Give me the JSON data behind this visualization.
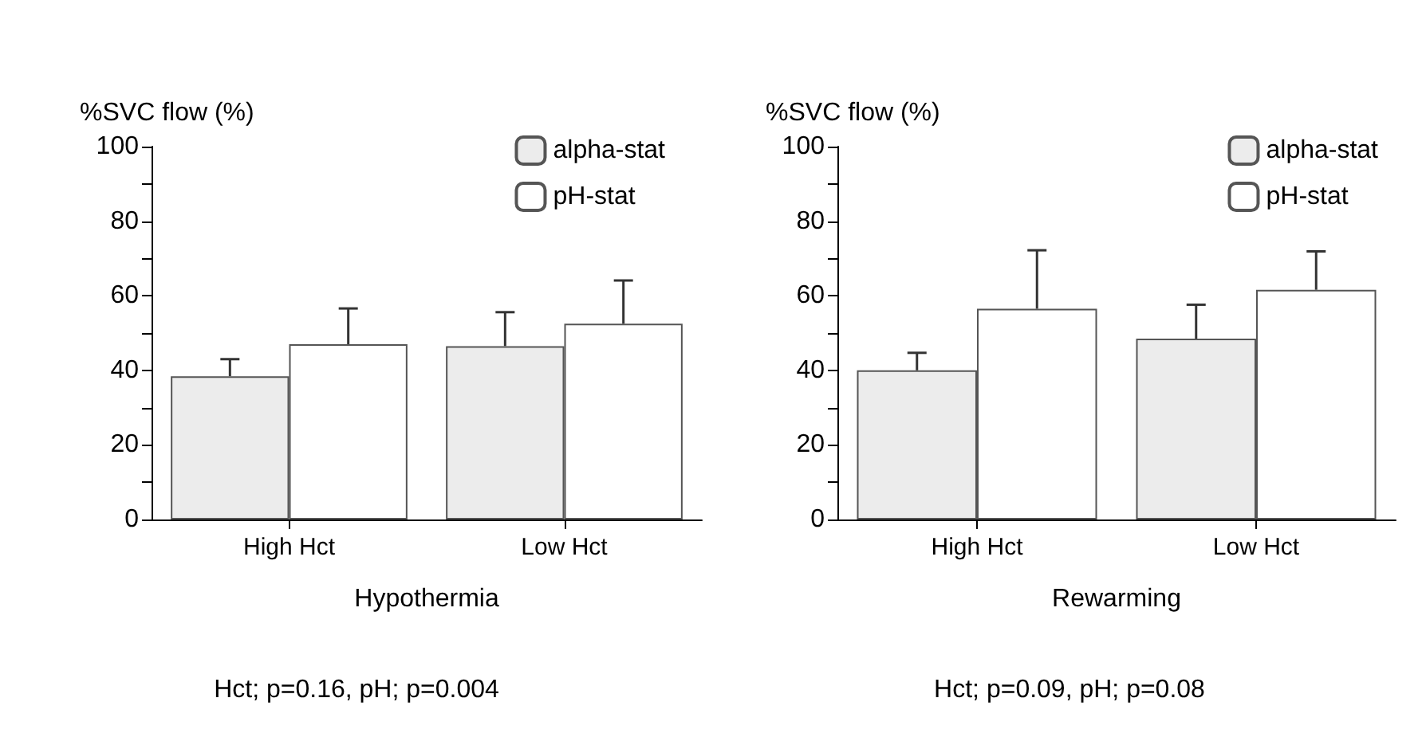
{
  "chart_data": [
    {
      "type": "bar",
      "ylabel": "%SVC flow (%)",
      "xlabel": "Hypothermia",
      "categories": [
        "High Hct",
        "Low Hct"
      ],
      "series": [
        {
          "name": "alpha-stat",
          "color": "#ececec",
          "values": [
            38.4,
            46.5
          ],
          "errors": [
            [
              38.4,
              43.0
            ],
            [
              46.5,
              55.6
            ]
          ]
        },
        {
          "name": "pH-stat",
          "color": "#ffffff",
          "values": [
            47.0,
            52.5
          ],
          "errors": [
            [
              47.0,
              56.6
            ],
            [
              52.5,
              64.1
            ]
          ]
        }
      ],
      "ylim": [
        0,
        100
      ],
      "yticks": [
        0,
        {
          "value": 10,
          "label": null
        },
        20,
        {
          "value": 30,
          "label": null
        },
        40,
        {
          "value": 50,
          "label": null
        },
        60,
        {
          "value": 70,
          "label": null
        },
        80,
        {
          "value": 90,
          "label": null
        },
        100
      ],
      "grid": false,
      "legend": "top right",
      "annotations": [
        "Hct; p=0.16, pH; p=0.004"
      ]
    },
    {
      "type": "bar",
      "ylabel": "%SVC flow (%)",
      "xlabel": "Rewarming",
      "categories": [
        "High Hct",
        "Low Hct"
      ],
      "series": [
        {
          "name": "alpha-stat",
          "color": "#ececec",
          "values": [
            40.0,
            48.5
          ],
          "errors": [
            [
              40.0,
              44.7
            ],
            [
              48.5,
              57.6
            ]
          ]
        },
        {
          "name": "pH-stat",
          "color": "#ffffff",
          "values": [
            56.5,
            61.6
          ],
          "errors": [
            [
              56.5,
              72.2
            ],
            [
              61.6,
              71.9
            ]
          ]
        }
      ],
      "ylim": [
        0,
        100
      ],
      "yticks": [
        0,
        {
          "value": 10,
          "label": null
        },
        20,
        {
          "value": 30,
          "label": null
        },
        40,
        {
          "value": 50,
          "label": null
        },
        60,
        {
          "value": 70,
          "label": null
        },
        80,
        {
          "value": 90,
          "label": null
        },
        100
      ],
      "grid": false,
      "legend": "top right",
      "annotations": [
        "Hct; p=0.09, pH; p=0.08"
      ]
    }
  ]
}
